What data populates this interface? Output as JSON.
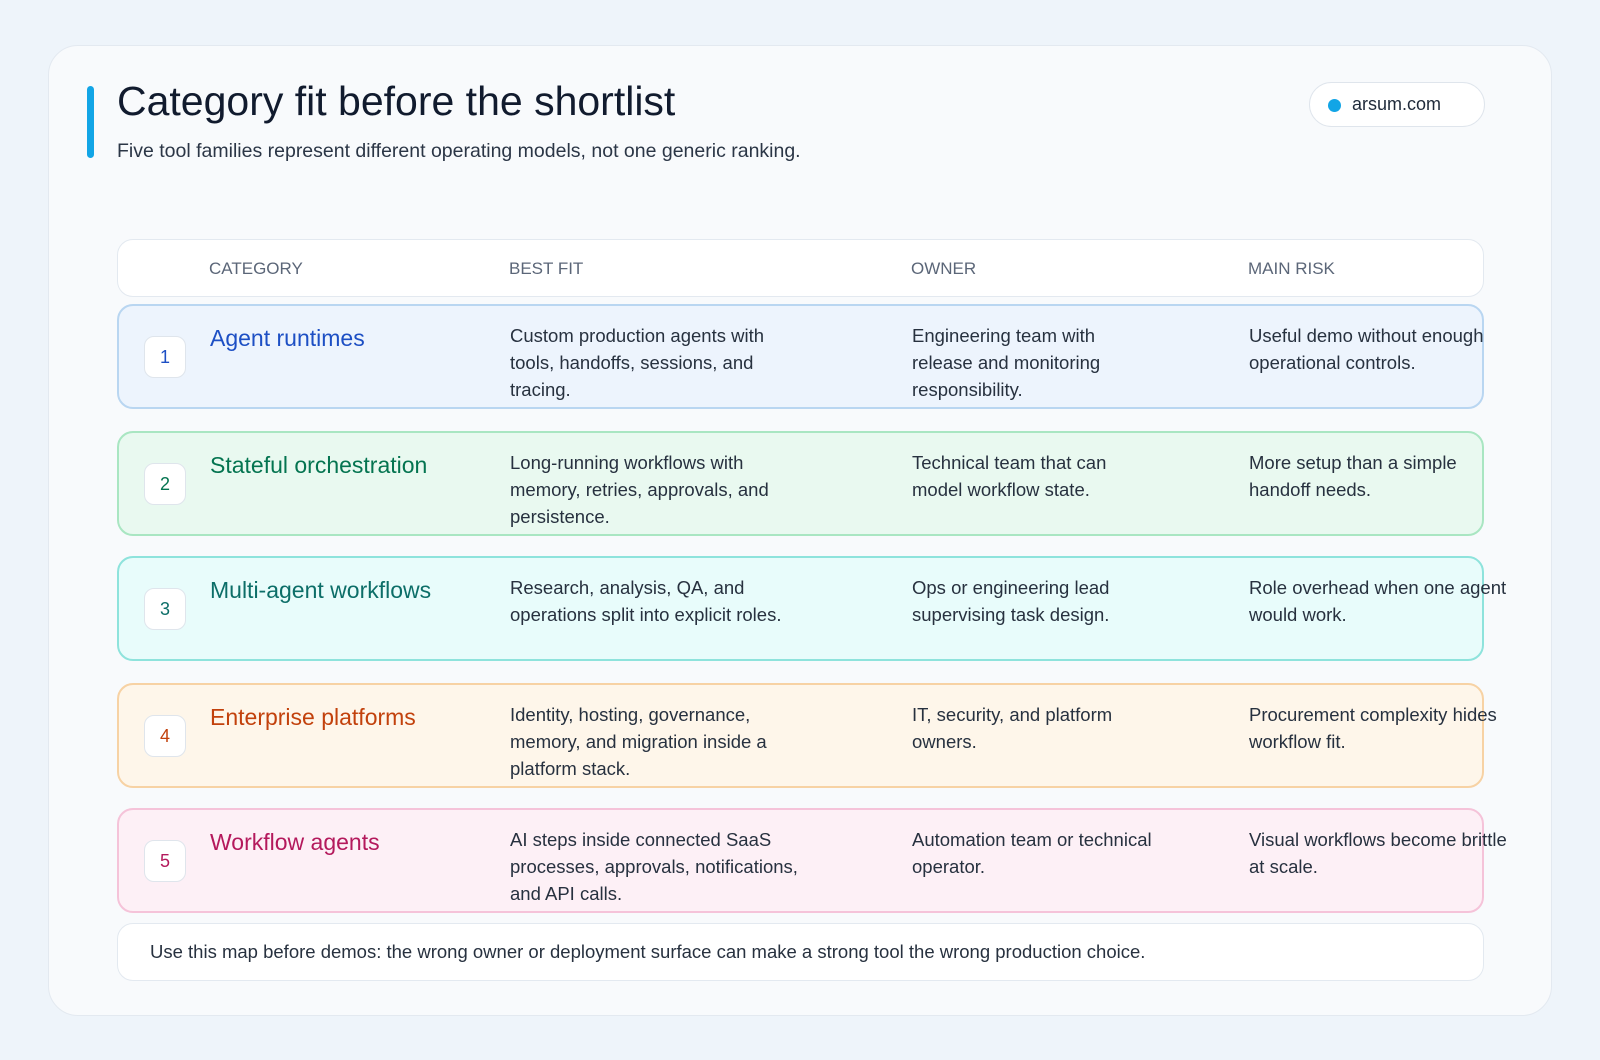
{
  "header": {
    "title": "Category fit before the shortlist",
    "subtitle": "Five tool families represent different operating models, not one generic ranking.",
    "badge": "arsum.com"
  },
  "table": {
    "columns": [
      "CATEGORY",
      "BEST FIT",
      "OWNER",
      "MAIN RISK"
    ],
    "rows": [
      {
        "number": 1,
        "category": "Agent runtimes",
        "best_fit": "Custom production agents with tools, handoffs, sessions, and tracing.",
        "owner": "Engineering team with release and monitoring responsibility.",
        "risk": "Useful demo without enough operational controls."
      },
      {
        "number": 2,
        "category": "Stateful orchestration",
        "best_fit": "Long-running workflows with memory, retries, approvals, and persistence.",
        "owner": "Technical team that can model workflow state.",
        "risk": "More setup than a simple handoff needs."
      },
      {
        "number": 3,
        "category": "Multi-agent workflows",
        "best_fit": "Research, analysis, QA, and operations split into explicit roles.",
        "owner": "Ops or engineering lead supervising task design.",
        "risk": "Role overhead when one agent would work."
      },
      {
        "number": 4,
        "category": "Enterprise platforms",
        "best_fit": "Identity, hosting, governance, memory, and migration inside a platform stack.",
        "owner": "IT, security, and platform owners.",
        "risk": "Procurement complexity hides workflow fit."
      },
      {
        "number": 5,
        "category": "Workflow agents",
        "best_fit": "AI steps inside connected SaaS processes, approvals, notifications, and API calls.",
        "owner": "Automation team or technical operator.",
        "risk": "Visual workflows become brittle at scale."
      }
    ]
  },
  "footer": {
    "note": "Use this map before demos: the wrong owner or deployment surface can make a strong tool the wrong production choice."
  }
}
